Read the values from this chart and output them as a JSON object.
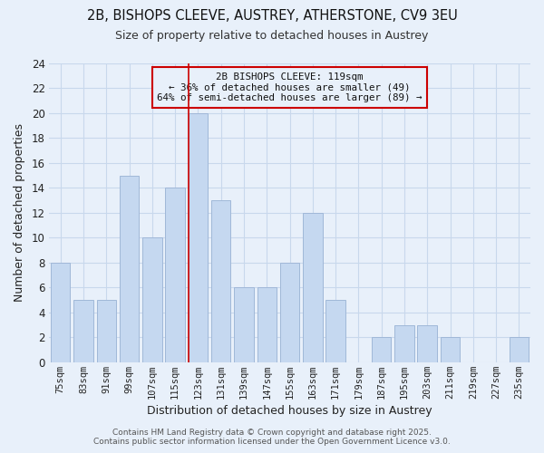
{
  "title": "2B, BISHOPS CLEEVE, AUSTREY, ATHERSTONE, CV9 3EU",
  "subtitle": "Size of property relative to detached houses in Austrey",
  "xlabel": "Distribution of detached houses by size in Austrey",
  "ylabel": "Number of detached properties",
  "categories": [
    "75sqm",
    "83sqm",
    "91sqm",
    "99sqm",
    "107sqm",
    "115sqm",
    "123sqm",
    "131sqm",
    "139sqm",
    "147sqm",
    "155sqm",
    "163sqm",
    "171sqm",
    "179sqm",
    "187sqm",
    "195sqm",
    "203sqm",
    "211sqm",
    "219sqm",
    "227sqm",
    "235sqm"
  ],
  "values": [
    8,
    5,
    5,
    15,
    10,
    14,
    20,
    13,
    6,
    6,
    8,
    12,
    5,
    0,
    2,
    3,
    3,
    2,
    0,
    0,
    2
  ],
  "bar_color": "#c5d8f0",
  "bar_edgecolor": "#a0b8d8",
  "grid_color": "#c8d8ec",
  "background_color": "#e8f0fa",
  "vline_x_index": 6,
  "vline_color": "#cc0000",
  "ylim": [
    0,
    24
  ],
  "yticks": [
    0,
    2,
    4,
    6,
    8,
    10,
    12,
    14,
    16,
    18,
    20,
    22,
    24
  ],
  "annotation_title": "2B BISHOPS CLEEVE: 119sqm",
  "annotation_line1": "← 36% of detached houses are smaller (49)",
  "annotation_line2": "64% of semi-detached houses are larger (89) →",
  "annotation_box_edgecolor": "#cc0000",
  "footer_line1": "Contains HM Land Registry data © Crown copyright and database right 2025.",
  "footer_line2": "Contains public sector information licensed under the Open Government Licence v3.0."
}
